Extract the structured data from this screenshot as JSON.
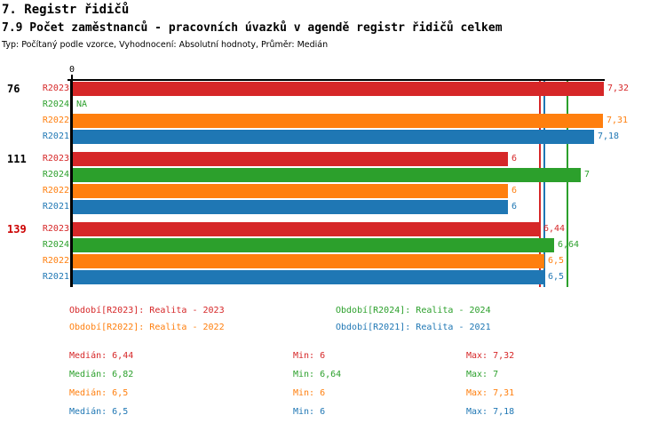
{
  "header": {
    "title": "7. Registr řidičů",
    "subtitle": "7.9 Počet zaměstnanců - pracovních úvazků v agendě registr řidičů celkem",
    "meta": "Typ: Počítaný podle vzorce, Vyhodnocení: Absolutní hodnoty, Průměr: Medián"
  },
  "chart_data": {
    "type": "bar",
    "orientation": "horizontal",
    "axis": {
      "origin_label": "0",
      "min": 0,
      "max": 7.37,
      "grid": false
    },
    "series_colors": {
      "R2023": "#d62728",
      "R2024": "#2ca02c",
      "R2022": "#ff7f0e",
      "R2021": "#1f77b4"
    },
    "groups": [
      {
        "label": "76",
        "label_color": "#000000",
        "bars": [
          {
            "series": "R2023",
            "value": 7.32,
            "display": "7,32"
          },
          {
            "series": "R2024",
            "value": null,
            "display": "NA"
          },
          {
            "series": "R2022",
            "value": 7.31,
            "display": "7,31"
          },
          {
            "series": "R2021",
            "value": 7.18,
            "display": "7,18"
          }
        ]
      },
      {
        "label": "111",
        "label_color": "#000000",
        "bars": [
          {
            "series": "R2023",
            "value": 6,
            "display": "6"
          },
          {
            "series": "R2024",
            "value": 7,
            "display": "7"
          },
          {
            "series": "R2022",
            "value": 6,
            "display": "6"
          },
          {
            "series": "R2021",
            "value": 6,
            "display": "6"
          }
        ]
      },
      {
        "label": "139",
        "label_color": "#cc0000",
        "bars": [
          {
            "series": "R2023",
            "value": 6.44,
            "display": "6,44"
          },
          {
            "series": "R2024",
            "value": 6.64,
            "display": "6,64"
          },
          {
            "series": "R2022",
            "value": 6.5,
            "display": "6,5"
          },
          {
            "series": "R2021",
            "value": 6.5,
            "display": "6,5"
          }
        ]
      }
    ],
    "median_lines": [
      {
        "series": "R2023",
        "value": 6.44,
        "color": "#d62728"
      },
      {
        "series": "R2022",
        "value": 6.5,
        "color": "#ff7f0e"
      },
      {
        "series": "R2021",
        "value": 6.5,
        "color": "#1f77b4"
      },
      {
        "series": "R2024",
        "value": 6.82,
        "color": "#2ca02c"
      }
    ]
  },
  "legend": [
    {
      "series": "R2023",
      "label": "Období[R2023]: Realita - 2023",
      "color": "#d62728"
    },
    {
      "series": "R2024",
      "label": "Období[R2024]: Realita - 2024",
      "color": "#2ca02c"
    },
    {
      "series": "R2022",
      "label": "Období[R2022]: Realita - 2022",
      "color": "#ff7f0e"
    },
    {
      "series": "R2021",
      "label": "Období[R2021]: Realita - 2021",
      "color": "#1f77b4"
    }
  ],
  "stats": [
    {
      "series": "R2023",
      "color": "#d62728",
      "median_label": "Medián: 6,44",
      "min_label": "Min: 6",
      "max_label": "Max: 7,32"
    },
    {
      "series": "R2024",
      "color": "#2ca02c",
      "median_label": "Medián: 6,82",
      "min_label": "Min: 6,64",
      "max_label": "Max: 7"
    },
    {
      "series": "R2022",
      "color": "#ff7f0e",
      "median_label": "Medián: 6,5",
      "min_label": "Min: 6",
      "max_label": "Max: 7,31"
    },
    {
      "series": "R2021",
      "color": "#1f77b4",
      "median_label": "Medián: 6,5",
      "min_label": "Min: 6",
      "max_label": "Max: 7,18"
    }
  ]
}
